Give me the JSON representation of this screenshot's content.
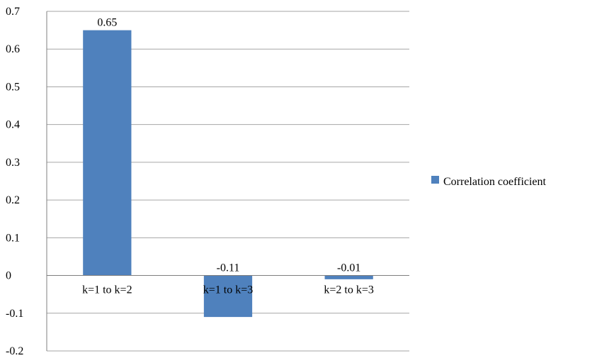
{
  "chart_data": {
    "type": "bar",
    "categories": [
      "k=1 to k=2",
      "k=1 to k=3",
      "k=2 to k=3"
    ],
    "series": [
      {
        "name": "Correlation coefficient",
        "values": [
          0.65,
          -0.11,
          -0.01
        ],
        "data_labels": [
          "0.65",
          "-0.11",
          "-0.01"
        ],
        "color": "#4f81bd"
      }
    ],
    "ylim": [
      -0.2,
      0.7
    ],
    "yticks": [
      "0.7",
      "0.6",
      "0.5",
      "0.4",
      "0.3",
      "0.2",
      "0.1",
      "0",
      "-0.1",
      "-0.2"
    ],
    "ytick_values": [
      0.7,
      0.6,
      0.5,
      0.4,
      0.3,
      0.2,
      0.1,
      0,
      -0.1,
      -0.2
    ],
    "title": "",
    "xlabel": "",
    "ylabel": "",
    "grid": true,
    "legend_position": "right"
  }
}
